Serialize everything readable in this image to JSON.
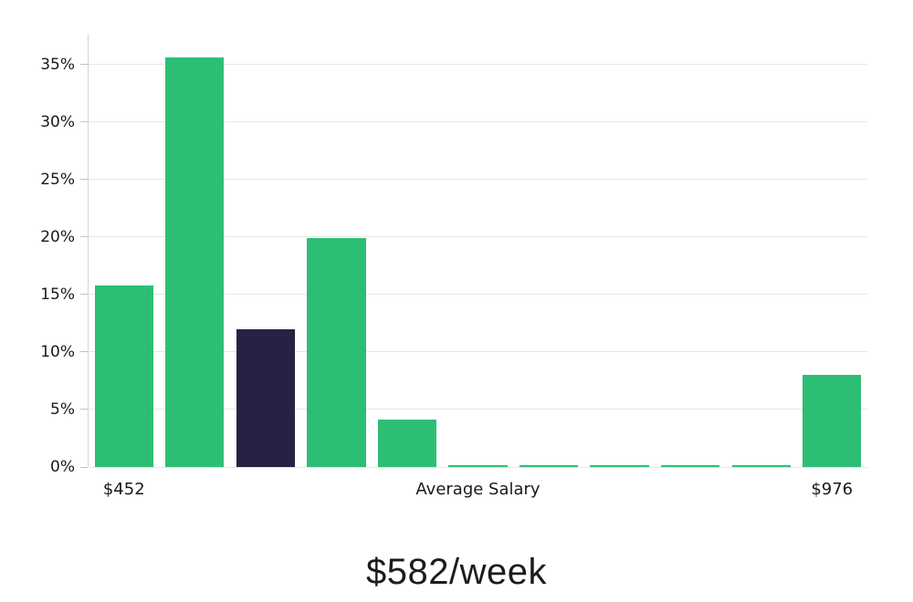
{
  "chart_data": {
    "type": "bar",
    "title": "$582/week",
    "values": [
      15.8,
      35.6,
      12.0,
      19.9,
      4.1,
      0.15,
      0.15,
      0.15,
      0.15,
      0.15,
      8.0
    ],
    "highlight_index": 2,
    "y_ticks": [
      "0%",
      "5%",
      "10%",
      "15%",
      "20%",
      "25%",
      "30%",
      "35%"
    ],
    "x_axis_labels": [
      {
        "bar_index": 0,
        "label": "$452"
      },
      {
        "bar_index": 5,
        "label": "Average Salary"
      },
      {
        "bar_index": 10,
        "label": "$976"
      }
    ],
    "ylim": [
      0,
      37.6
    ],
    "grid": true,
    "legend": false,
    "colors": {
      "bar": "#2dbe75",
      "highlight_bar": "#262244",
      "grid": "#e6e6e6",
      "axis": "#d2d2d2",
      "tick": "#c2c2c2",
      "text": "#1a1a1a"
    }
  }
}
